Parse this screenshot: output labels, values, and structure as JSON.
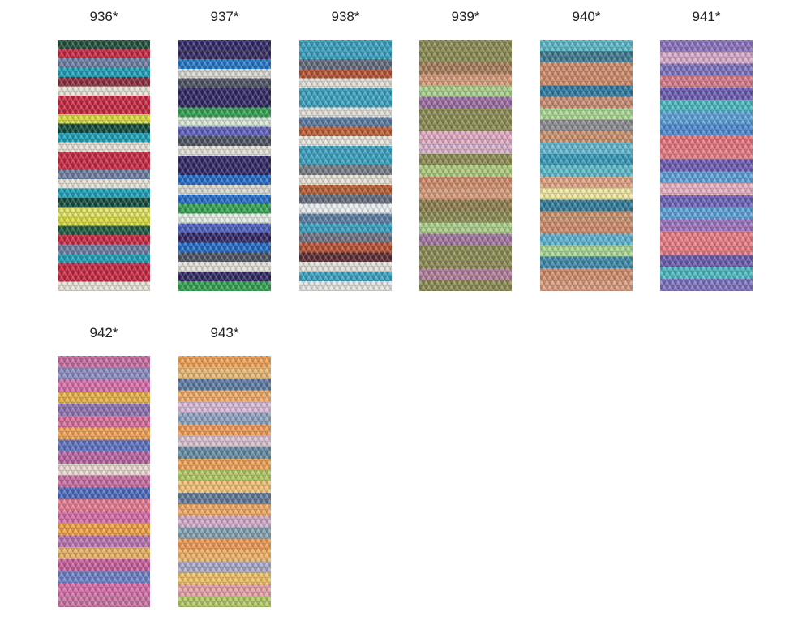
{
  "swatches": [
    {
      "label": "936*",
      "stripes": [
        "#1f4f3a",
        "#c8243e",
        "#6a7ca0",
        "#1aa0b8",
        "#8a2a3a",
        "#e6e2d6",
        "#c8243e",
        "#c8243e",
        "#d8dc3a",
        "#10483a",
        "#17a0b8",
        "#e8e2d6",
        "#c8243e",
        "#c8243e",
        "#6a7ca0",
        "#e6e2d6",
        "#17a0b8",
        "#0f4a3a",
        "#e0e460",
        "#d8dc3a",
        "#1a5a40",
        "#c8243e",
        "#6a7ca0",
        "#17a0b8",
        "#c8243e",
        "#c8243e",
        "#e6e2d6"
      ]
    },
    {
      "label": "937*",
      "stripes": [
        "#2f2868",
        "#34295e",
        "#1e74c8",
        "#d8d8d0",
        "#4a5060",
        "#2e2462",
        "#2e2462",
        "#2fa04e",
        "#d8e8d8",
        "#5a5cc0",
        "#4a5060",
        "#e2e0d8",
        "#2e2462",
        "#2e2462",
        "#1e6ac8",
        "#d8d8d0",
        "#1e6ac8",
        "#2fa04e",
        "#e2ece2",
        "#4a5cc0",
        "#2e2462",
        "#1e6ac8",
        "#4a5060",
        "#e2e0d8",
        "#2e2462",
        "#2fa04e"
      ]
    },
    {
      "label": "938*",
      "stripes": [
        "#35a0c0",
        "#35a0c0",
        "#606878",
        "#b85030",
        "#e2e0d8",
        "#35a0c0",
        "#35a0c0",
        "#e2e0d8",
        "#5878a0",
        "#c05a30",
        "#e8e4da",
        "#35a0c0",
        "#35a0c0",
        "#707880",
        "#e6e2d8",
        "#b85a30",
        "#606878",
        "#e8ecee",
        "#5a7aa0",
        "#35a0c0",
        "#6a7080",
        "#b85030",
        "#5a2a30",
        "#e2e0d8",
        "#35a0c0",
        "#e2e4e0"
      ]
    },
    {
      "label": "939*",
      "stripes": [
        "#8a8a50",
        "#8a8a50",
        "#a67a58",
        "#d89a78",
        "#a8d088",
        "#9a6aa0",
        "#8a8a50",
        "#8a8a50",
        "#e0a8c0",
        "#d8b0c8",
        "#8a8a50",
        "#a8c878",
        "#d08a68",
        "#d89a78",
        "#8a7a48",
        "#8a8a50",
        "#a8d088",
        "#a070a0",
        "#8a8a50",
        "#8a8a50",
        "#b07a98",
        "#8a8a50"
      ]
    },
    {
      "label": "940*",
      "stripes": [
        "#58b8c8",
        "#3a7890",
        "#d08a68",
        "#d08a68",
        "#2a78a0",
        "#c88a70",
        "#a8d890",
        "#8a8a90",
        "#c8906c",
        "#60b8d0",
        "#3098b8",
        "#58b8c8",
        "#e0a080",
        "#f0e8a0",
        "#2a7898",
        "#c8906c",
        "#d08a68",
        "#58b0d0",
        "#a8d890",
        "#3a88a8",
        "#d08a68",
        "#d89a7a"
      ]
    },
    {
      "label": "941*",
      "stripes": [
        "#8a70c0",
        "#d8a8c8",
        "#7a70c0",
        "#d87888",
        "#6a58b0",
        "#48b8c0",
        "#58a0d8",
        "#4a88d0",
        "#e8707a",
        "#e87880",
        "#6a58b0",
        "#58a0d8",
        "#e8b0c0",
        "#6a60b8",
        "#58a0d8",
        "#9a70c0",
        "#e87880",
        "#e87880",
        "#6a58b0",
        "#48b8c0",
        "#7a70c0"
      ]
    },
    {
      "label": "942*",
      "stripes": [
        "#c86aa0",
        "#8a8ac0",
        "#d86aa8",
        "#e8b040",
        "#8a70b0",
        "#d86a98",
        "#f0a050",
        "#5a70c0",
        "#b860a0",
        "#e8d8d0",
        "#c86aa0",
        "#4a68c0",
        "#e87890",
        "#d86aa8",
        "#f0a040",
        "#b870b0",
        "#e8b060",
        "#c85a98",
        "#6a80c8",
        "#d86aa8",
        "#c870a0"
      ]
    },
    {
      "label": "943*",
      "stripes": [
        "#f0a050",
        "#e8b870",
        "#5a78a0",
        "#f0a860",
        "#d8b8d8",
        "#8aa0c0",
        "#f09850",
        "#d8c0d0",
        "#6088a0",
        "#f0a050",
        "#b0c860",
        "#f0c070",
        "#607898",
        "#f0a860",
        "#d0a8c8",
        "#80a0b0",
        "#f09850",
        "#f0b060",
        "#a8a8c8",
        "#f0c060",
        "#e8a0a8",
        "#b0c860"
      ]
    }
  ]
}
